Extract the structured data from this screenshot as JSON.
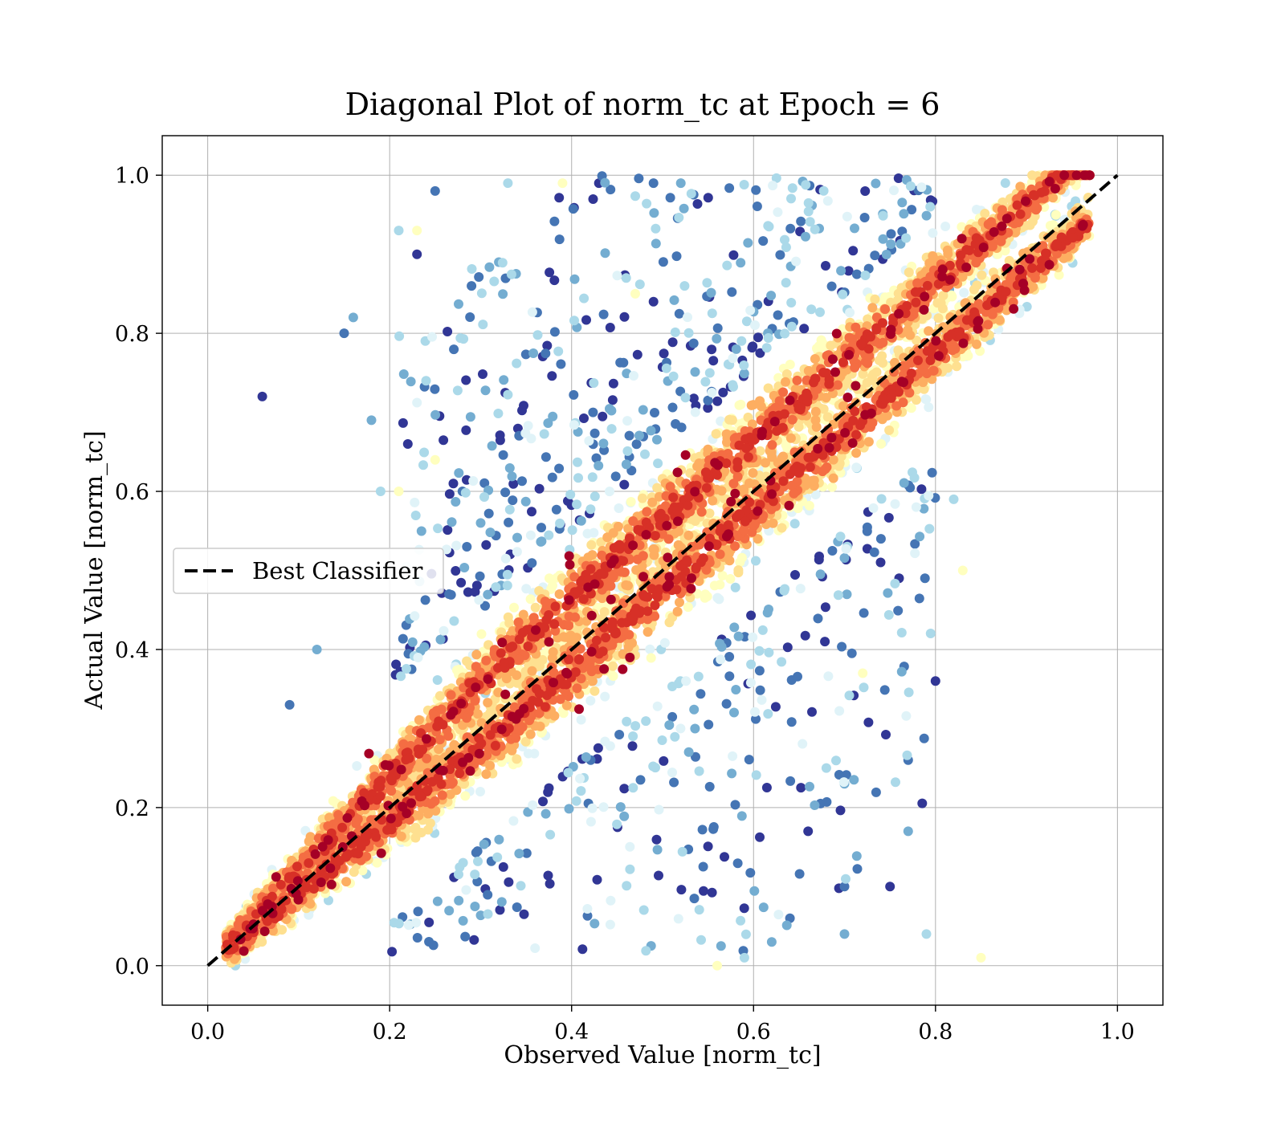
{
  "chart_data": {
    "type": "scatter",
    "title": "Diagonal Plot of norm_tc at Epoch = 6",
    "xlabel": "Observed Value [norm_tc]",
    "ylabel": "Actual Value [norm_tc]",
    "xlim": [
      -0.05,
      1.05
    ],
    "ylim": [
      -0.05,
      1.05
    ],
    "xticks": [
      "0.0",
      "0.2",
      "0.4",
      "0.6",
      "0.8",
      "1.0"
    ],
    "yticks": [
      "0.0",
      "0.2",
      "0.4",
      "0.6",
      "0.8",
      "1.0"
    ],
    "tick_values": [
      0.0,
      0.2,
      0.4,
      0.6,
      0.8,
      1.0
    ],
    "grid": true,
    "legend": {
      "placement": "center-left",
      "entries": [
        "Best Classifier"
      ]
    },
    "reference_line": {
      "name": "Best Classifier",
      "x": [
        0.0,
        1.0
      ],
      "y": [
        0.0,
        1.0
      ],
      "style": "dashed",
      "color": "#000000"
    },
    "colormap": [
      "#313695",
      "#4575b4",
      "#74add1",
      "#abd9e9",
      "#e0f3f8",
      "#ffffbf",
      "#fee090",
      "#fdae61",
      "#f46d43",
      "#d73027",
      "#a50026"
    ],
    "density_band": {
      "ranges": [
        [
          0.02,
          0.97
        ],
        [
          0.03,
          0.97
        ],
        [
          0.05,
          0.97
        ]
      ],
      "lower_branch_offset": 0.025,
      "upper_branch_offset": 0.065,
      "spread": 0.11
    },
    "outliers": [
      [
        0.06,
        0.72
      ],
      [
        0.15,
        0.8
      ],
      [
        0.16,
        0.82
      ],
      [
        0.21,
        0.93
      ],
      [
        0.23,
        0.93
      ],
      [
        0.23,
        0.9
      ],
      [
        0.25,
        0.98
      ],
      [
        0.18,
        0.69
      ],
      [
        0.19,
        0.6
      ],
      [
        0.21,
        0.6
      ],
      [
        0.22,
        0.66
      ],
      [
        0.09,
        0.33
      ],
      [
        0.12,
        0.4
      ],
      [
        0.33,
        0.99
      ],
      [
        0.39,
        0.99
      ],
      [
        0.43,
        0.99
      ],
      [
        0.49,
        0.99
      ],
      [
        0.52,
        0.99
      ],
      [
        0.46,
        0.87
      ],
      [
        0.47,
        0.85
      ],
      [
        0.49,
        0.84
      ],
      [
        0.29,
        0.86
      ],
      [
        0.32,
        0.89
      ],
      [
        0.24,
        0.74
      ],
      [
        0.25,
        0.64
      ],
      [
        0.27,
        0.61
      ],
      [
        0.28,
        0.6
      ],
      [
        0.3,
        0.56
      ],
      [
        0.82,
        0.59
      ],
      [
        0.83,
        0.5
      ],
      [
        0.8,
        0.36
      ],
      [
        0.77,
        0.26
      ],
      [
        0.77,
        0.17
      ],
      [
        0.79,
        0.04
      ],
      [
        0.85,
        0.01
      ],
      [
        0.75,
        0.1
      ],
      [
        0.7,
        0.1
      ],
      [
        0.7,
        0.23
      ],
      [
        0.68,
        0.25
      ],
      [
        0.72,
        0.37
      ],
      [
        0.66,
        0.17
      ],
      [
        0.64,
        0.06
      ],
      [
        0.62,
        0.03
      ],
      [
        0.59,
        0.01
      ],
      [
        0.56,
        0.0
      ],
      [
        0.76,
        0.49
      ],
      [
        0.74,
        0.54
      ],
      [
        0.7,
        0.04
      ]
    ]
  }
}
